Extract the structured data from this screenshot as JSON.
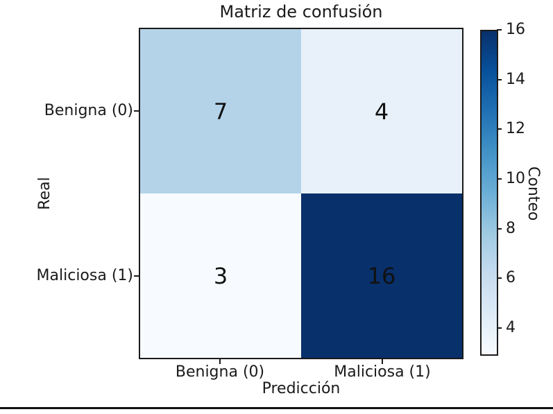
{
  "chart_data": {
    "type": "heatmap",
    "title": "Matriz de confusión",
    "xlabel": "Predicción",
    "ylabel": "Real",
    "x_categories": [
      "Benigna (0)",
      "Maliciosa (1)"
    ],
    "y_categories": [
      "Benigna (0)",
      "Maliciosa (1)"
    ],
    "matrix": [
      [
        7,
        4
      ],
      [
        3,
        16
      ]
    ],
    "cell_colors": [
      [
        "#b4d3e9",
        "#e8f1fa"
      ],
      [
        "#f7fbff",
        "#08306b"
      ]
    ],
    "colormap": "Blues",
    "colormap_stops": [
      "#f7fbff",
      "#deebf7",
      "#c6dbef",
      "#9ecae1",
      "#6baed6",
      "#4292c6",
      "#2171b5",
      "#08519c",
      "#08306b"
    ],
    "vmin": 3,
    "vmax": 16,
    "colorbar": {
      "label": "Conteo",
      "ticks": [
        4,
        6,
        8,
        10,
        12,
        14,
        16
      ]
    },
    "grid": false,
    "legend": false,
    "annotation_color": "#111111",
    "spine_color": "#1a1a1a"
  }
}
